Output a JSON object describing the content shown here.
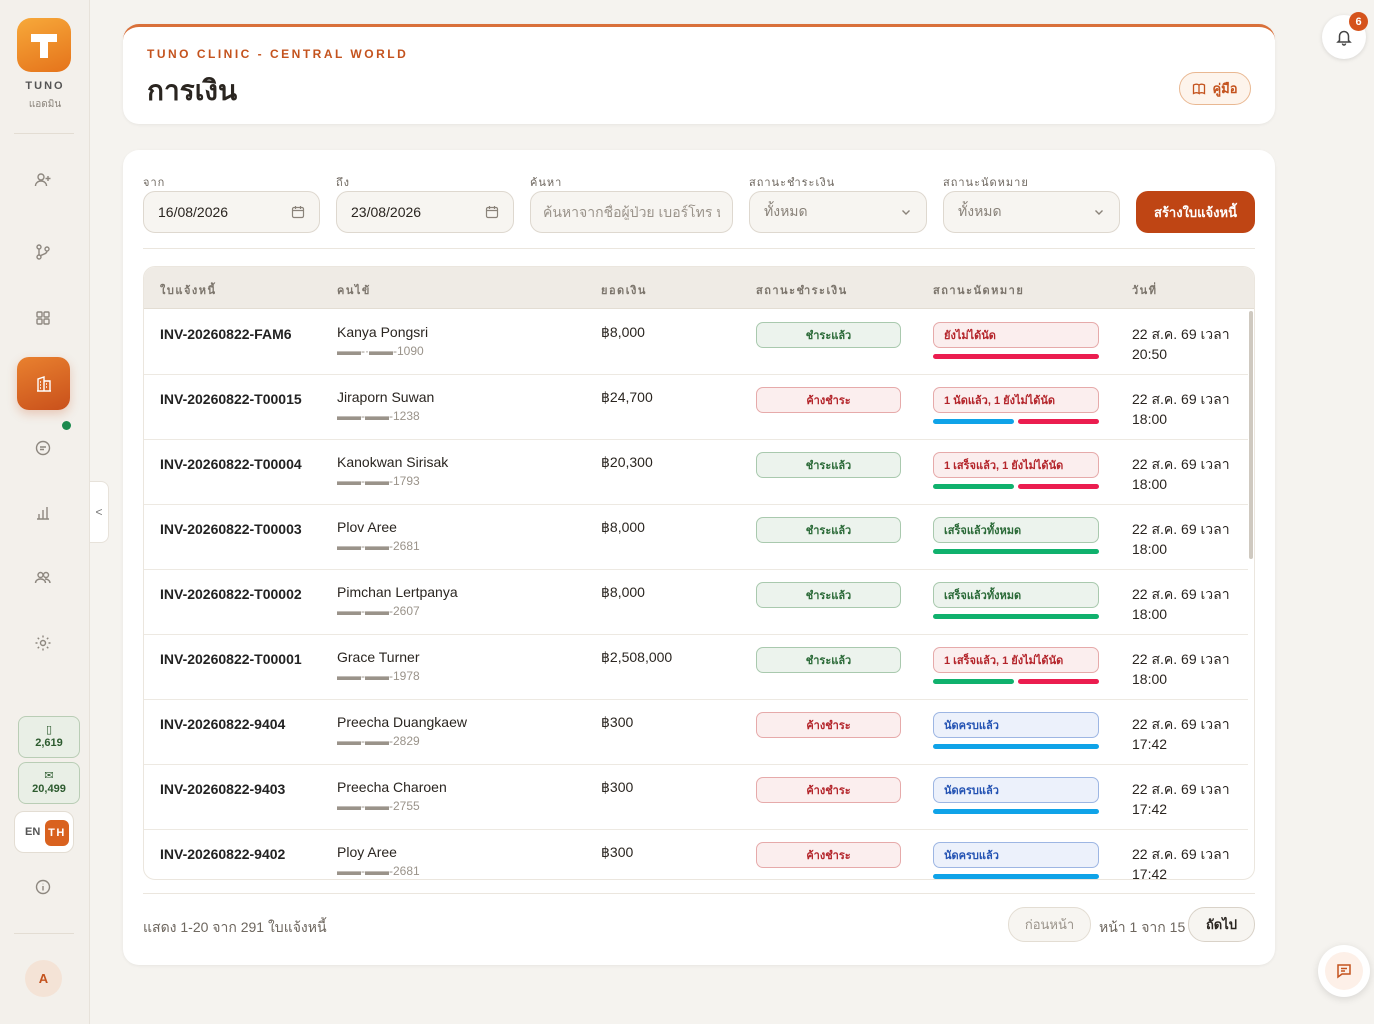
{
  "sidebar": {
    "brand": "TUNO",
    "role": "แอดมิน",
    "counters": {
      "sms": "2,619",
      "email": "20,499"
    },
    "lang": {
      "en": "EN",
      "th": "TH"
    },
    "avatar": "A",
    "collapse": "<",
    "icons": [
      "user-plus-icon",
      "branch-icon",
      "grid-icon",
      "building-icon",
      "chat-icon",
      "chart-icon",
      "users-icon",
      "gear-icon",
      "info-icon"
    ]
  },
  "header": {
    "clinic": "TUNO CLINIC - CENTRAL WORLD",
    "title": "การเงิน",
    "manual": "คู่มือ"
  },
  "notifications": {
    "count": "6"
  },
  "filters": {
    "from_label": "จาก",
    "from_value": "16/08/2026",
    "to_label": "ถึง",
    "to_value": "23/08/2026",
    "search_label": "ค้นหา",
    "search_placeholder": "ค้นหาจากชื่อผู้ป่วย เบอร์โทร หรือ",
    "pay_status_label": "สถานะชำระเงิน",
    "pay_status_value": "ทั้งหมด",
    "appt_status_label": "สถานะนัดหมาย",
    "appt_status_value": "ทั้งหมด",
    "create_button": "สร้างใบแจ้งหนี้"
  },
  "table": {
    "headers": {
      "invoice": "ใบแจ้งหนี้",
      "patient": "คนไข้",
      "amount": "ยอดเงิน",
      "pay_status": "สถานะชำระเงิน",
      "appt_status": "สถานะนัดหมาย",
      "date": "วันที่"
    },
    "rows": [
      {
        "invoice": "INV-20260822-FAM6",
        "name": "Kanya Pongsri",
        "phone": "▬▬-·▬▬-1090",
        "amount": "฿8,000",
        "pay": "ชำระแล้ว",
        "pay_type": "paid",
        "appt": "ยังไม่ได้นัด",
        "appt_type": "red",
        "bars": [
          "r"
        ],
        "date": "22 ส.ค. 69 เวลา 20:50"
      },
      {
        "invoice": "INV-20260822-T00015",
        "name": "Jiraporn Suwan",
        "phone": "▬▬-▬▬-1238",
        "amount": "฿24,700",
        "pay": "ค้างชำระ",
        "pay_type": "unpaid",
        "appt": "1 นัดแล้ว, 1 ยังไม่ได้นัด",
        "appt_type": "red",
        "bars": [
          "b",
          "r"
        ],
        "date": "22 ส.ค. 69 เวลา 18:00"
      },
      {
        "invoice": "INV-20260822-T00004",
        "name": "Kanokwan Sirisak",
        "phone": "▬▬-▬▬-1793",
        "amount": "฿20,300",
        "pay": "ชำระแล้ว",
        "pay_type": "paid",
        "appt": "1 เสร็จแล้ว, 1 ยังไม่ได้นัด",
        "appt_type": "red",
        "bars": [
          "g",
          "r"
        ],
        "date": "22 ส.ค. 69 เวลา 18:00"
      },
      {
        "invoice": "INV-20260822-T00003",
        "name": "Plov Aree",
        "phone": "▬▬-▬▬-2681",
        "amount": "฿8,000",
        "pay": "ชำระแล้ว",
        "pay_type": "paid",
        "appt": "เสร็จแล้วทั้งหมด",
        "appt_type": "green",
        "bars": [
          "g"
        ],
        "date": "22 ส.ค. 69 เวลา 18:00"
      },
      {
        "invoice": "INV-20260822-T00002",
        "name": "Pimchan Lertpanya",
        "phone": "▬▬-▬▬-2607",
        "amount": "฿8,000",
        "pay": "ชำระแล้ว",
        "pay_type": "paid",
        "appt": "เสร็จแล้วทั้งหมด",
        "appt_type": "green",
        "bars": [
          "g"
        ],
        "date": "22 ส.ค. 69 เวลา 18:00"
      },
      {
        "invoice": "INV-20260822-T00001",
        "name": "Grace Turner",
        "phone": "▬▬-▬▬-1978",
        "amount": "฿2,508,000",
        "pay": "ชำระแล้ว",
        "pay_type": "paid",
        "appt": "1 เสร็จแล้ว, 1 ยังไม่ได้นัด",
        "appt_type": "red",
        "bars": [
          "g",
          "r"
        ],
        "date": "22 ส.ค. 69 เวลา 18:00"
      },
      {
        "invoice": "INV-20260822-9404",
        "name": "Preecha Duangkaew",
        "phone": "▬▬-▬▬-2829",
        "amount": "฿300",
        "pay": "ค้างชำระ",
        "pay_type": "unpaid",
        "appt": "นัดครบแล้ว",
        "appt_type": "blue",
        "bars": [
          "b"
        ],
        "date": "22 ส.ค. 69 เวลา 17:42"
      },
      {
        "invoice": "INV-20260822-9403",
        "name": "Preecha Charoen",
        "phone": "▬▬-▬▬-2755",
        "amount": "฿300",
        "pay": "ค้างชำระ",
        "pay_type": "unpaid",
        "appt": "นัดครบแล้ว",
        "appt_type": "blue",
        "bars": [
          "b"
        ],
        "date": "22 ส.ค. 69 เวลา 17:42"
      },
      {
        "invoice": "INV-20260822-9402",
        "name": "Ploy Aree",
        "phone": "▬▬-▬▬-2681",
        "amount": "฿300",
        "pay": "ค้างชำระ",
        "pay_type": "unpaid",
        "appt": "นัดครบแล้ว",
        "appt_type": "blue",
        "bars": [
          "b"
        ],
        "date": "22 ส.ค. 69 เวลา 17:42"
      }
    ]
  },
  "pagination": {
    "showing": "แสดง 1-20 จาก 291 ใบแจ้งหนี้",
    "prev": "ก่อนหน้า",
    "page_info": "หน้า 1 จาก 15",
    "next": "ถัดไป"
  }
}
